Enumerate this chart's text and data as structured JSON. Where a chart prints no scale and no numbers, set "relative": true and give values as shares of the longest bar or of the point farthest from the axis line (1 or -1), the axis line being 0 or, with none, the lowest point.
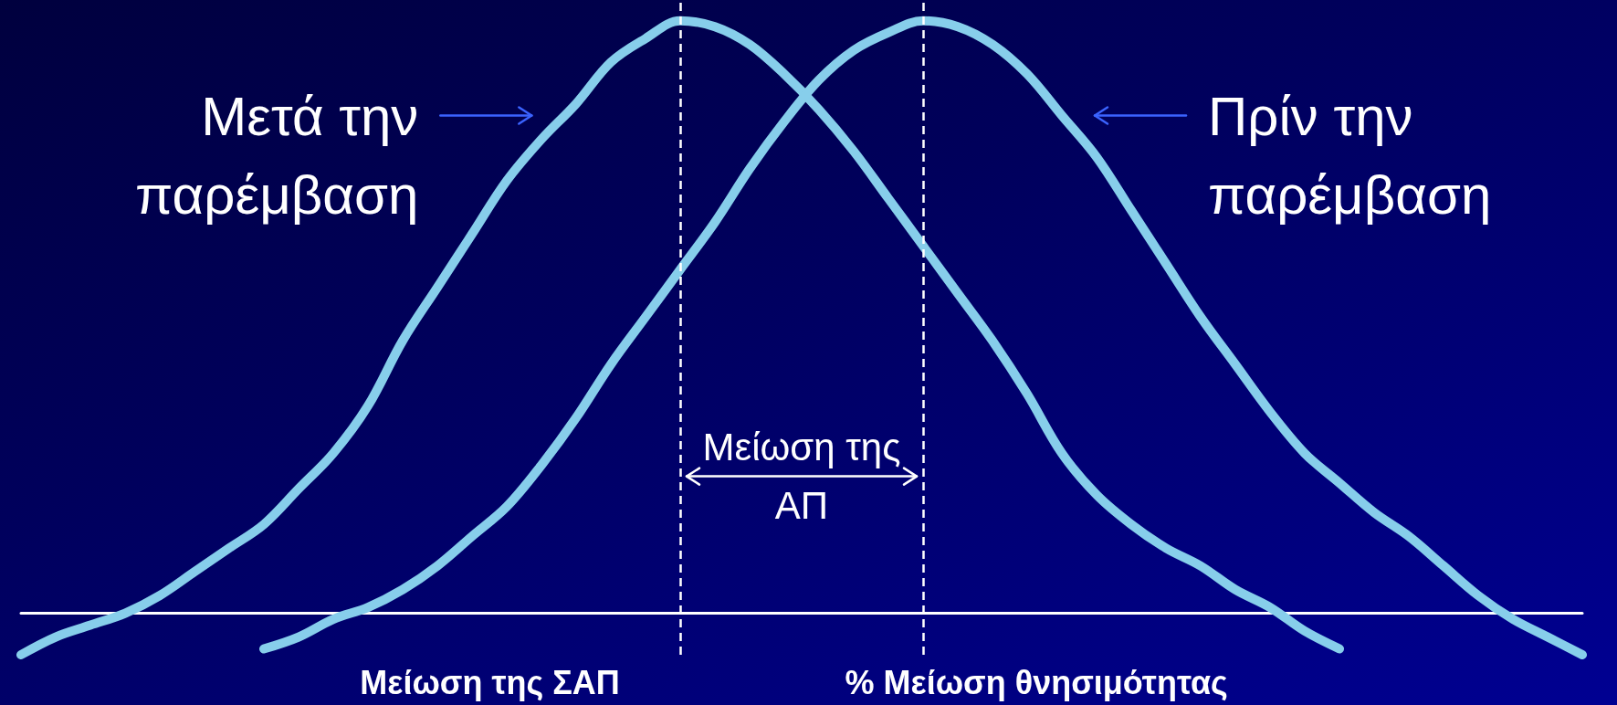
{
  "chart_data": {
    "type": "line",
    "relative": true,
    "marker": "none",
    "line_style": "solid",
    "categories": [
      null,
      null,
      null,
      null,
      null,
      null,
      null,
      null,
      null,
      null,
      null,
      null,
      null,
      null,
      null,
      null,
      null,
      null,
      null,
      null,
      null,
      null,
      null,
      null,
      null,
      null,
      null,
      null,
      null,
      null,
      null,
      null,
      null,
      null,
      null,
      null,
      null,
      null,
      null,
      null,
      null,
      null,
      null,
      null,
      null,
      null
    ],
    "series": [
      {
        "name": "Μετά την παρέμβαση",
        "color": "#87ceeb",
        "values": [
          -0.07,
          -0.04,
          -0.02,
          0,
          0.03,
          0.07,
          0.11,
          0.15,
          0.21,
          0.27,
          0.35,
          0.46,
          0.55,
          0.64,
          0.73,
          0.8,
          0.86,
          0.93,
          0.97,
          1,
          0.99,
          0.96,
          0.91,
          0.85,
          0.78,
          0.7,
          0.62,
          0.54,
          0.46,
          0.37,
          0.27,
          0.2,
          0.15,
          0.11,
          0.08,
          0.04,
          0.01,
          -0.03,
          -0.06,
          null,
          null,
          null,
          null,
          null,
          null,
          null
        ]
      },
      {
        "name": "Πρίν την παρέμβαση",
        "color": "#87ceeb",
        "values": [
          null,
          null,
          null,
          null,
          null,
          null,
          null,
          -0.06,
          -0.04,
          -0.01,
          0.01,
          0.04,
          0.08,
          0.13,
          0.18,
          0.25,
          0.33,
          0.42,
          0.5,
          0.58,
          0.66,
          0.75,
          0.83,
          0.9,
          0.95,
          0.98,
          1,
          0.99,
          0.96,
          0.91,
          0.84,
          0.77,
          0.68,
          0.59,
          0.5,
          0.42,
          0.34,
          0.27,
          0.22,
          0.17,
          0.13,
          0.08,
          0.03,
          -0.01,
          -0.04,
          -0.07
        ]
      }
    ],
    "annotations": [
      "Μείωση της ΑΠ",
      "Μείωση της ΣΑΠ",
      "% Μείωση θνησιμότητας"
    ]
  }
}
